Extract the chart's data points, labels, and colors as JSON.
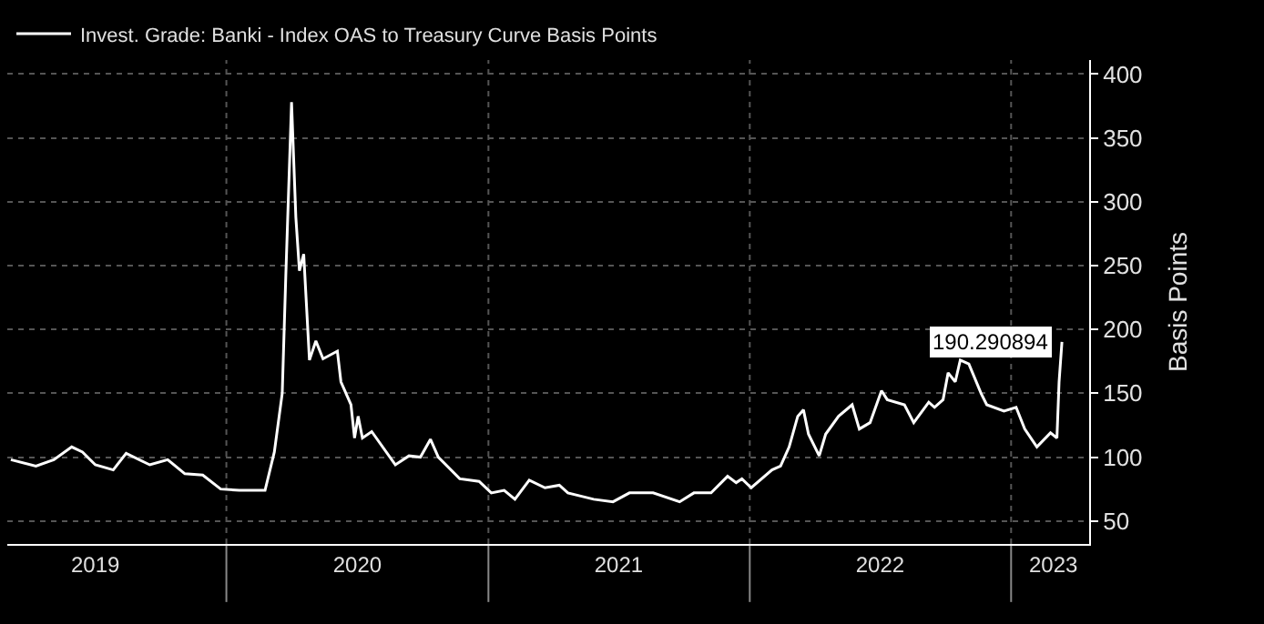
{
  "chart_data": {
    "type": "line",
    "ylabel": "Basis Points",
    "x": [
      "2019-03-06",
      "2019-04-10",
      "2019-05-05",
      "2019-05-30",
      "2019-06-14",
      "2019-07-02",
      "2019-07-27",
      "2019-08-14",
      "2019-09-16",
      "2019-10-11",
      "2019-11-04",
      "2019-11-29",
      "2019-12-24",
      "2020-01-19",
      "2020-02-24",
      "2020-03-08",
      "2020-03-19",
      "2020-03-24",
      "2020-04-01",
      "2020-04-07",
      "2020-04-12",
      "2020-04-18",
      "2020-04-26",
      "2020-05-05",
      "2020-05-15",
      "2020-06-04",
      "2020-06-09",
      "2020-06-23",
      "2020-06-28",
      "2020-07-03",
      "2020-07-09",
      "2020-07-22",
      "2020-08-24",
      "2020-09-12",
      "2020-09-28",
      "2020-10-12",
      "2020-10-23",
      "2020-11-22",
      "2020-12-19",
      "2021-01-05",
      "2021-01-23",
      "2021-02-07",
      "2021-02-27",
      "2021-03-21",
      "2021-04-10",
      "2021-04-22",
      "2021-05-28",
      "2021-06-24",
      "2021-07-17",
      "2021-08-14",
      "2021-08-19",
      "2021-09-25",
      "2021-10-15",
      "2021-11-08",
      "2021-12-01",
      "2021-12-13",
      "2021-12-21",
      "2022-01-03",
      "2022-02-01",
      "2022-02-13",
      "2022-02-25",
      "2022-03-09",
      "2022-03-17",
      "2022-03-24",
      "2022-04-08",
      "2022-04-17",
      "2022-05-05",
      "2022-05-24",
      "2022-06-03",
      "2022-06-18",
      "2022-07-04",
      "2022-07-12",
      "2022-08-05",
      "2022-08-18",
      "2022-09-08",
      "2022-09-16",
      "2022-09-28",
      "2022-10-05",
      "2022-10-15",
      "2022-10-22",
      "2022-11-03",
      "2022-11-20",
      "2022-11-28",
      "2022-12-22",
      "2023-01-08",
      "2023-01-20",
      "2023-02-06",
      "2023-02-25",
      "2023-03-06",
      "2023-03-09",
      "2023-03-13"
    ],
    "series": [
      {
        "name": "Invest. Grade: Banki - Index OAS to Treasury Curve Basis Points",
        "color": "#ffffff",
        "values": [
          98,
          93,
          98,
          108,
          104,
          94,
          90,
          103,
          94,
          98,
          87,
          86,
          75,
          74,
          74,
          104,
          150,
          242,
          378,
          288,
          246,
          259,
          176,
          191,
          177,
          183,
          159,
          141,
          115,
          132,
          115,
          120,
          94,
          101,
          100,
          114,
          100,
          83,
          81,
          72,
          74,
          67,
          82,
          76,
          78,
          72,
          67,
          65,
          72,
          72,
          72,
          65,
          72,
          72,
          85,
          80,
          83,
          76,
          90,
          93,
          108,
          132,
          137,
          118,
          101,
          118,
          132,
          141,
          122,
          127,
          152,
          145,
          141,
          127,
          143,
          139,
          145,
          166,
          159,
          176,
          173,
          150,
          141,
          136,
          139,
          122,
          108,
          119,
          115,
          159,
          190.290894
        ]
      }
    ],
    "annotations": [
      {
        "text": "190.290894",
        "x": "2023-03-13",
        "y": 190.290894
      }
    ],
    "xlim": [
      "2019-03-01",
      "2023-04-20"
    ],
    "xticks": [
      {
        "value": "2019-07-02",
        "label": "2019"
      },
      {
        "value": "2020-01-01",
        "label": null
      },
      {
        "value": "2020-07-02",
        "label": "2020"
      },
      {
        "value": "2021-01-01",
        "label": null
      },
      {
        "value": "2021-07-02",
        "label": "2021"
      },
      {
        "value": "2022-01-01",
        "label": null
      },
      {
        "value": "2022-07-02",
        "label": "2022"
      },
      {
        "value": "2023-01-01",
        "label": null
      },
      {
        "value": "2023-03-01",
        "label": "2023"
      }
    ],
    "ylim": [
      32,
      411
    ],
    "yticks": [
      50,
      100,
      150,
      200,
      250,
      300,
      350,
      400
    ],
    "grid": true,
    "legend": "top left",
    "marker": "none",
    "line_style": "solid"
  }
}
